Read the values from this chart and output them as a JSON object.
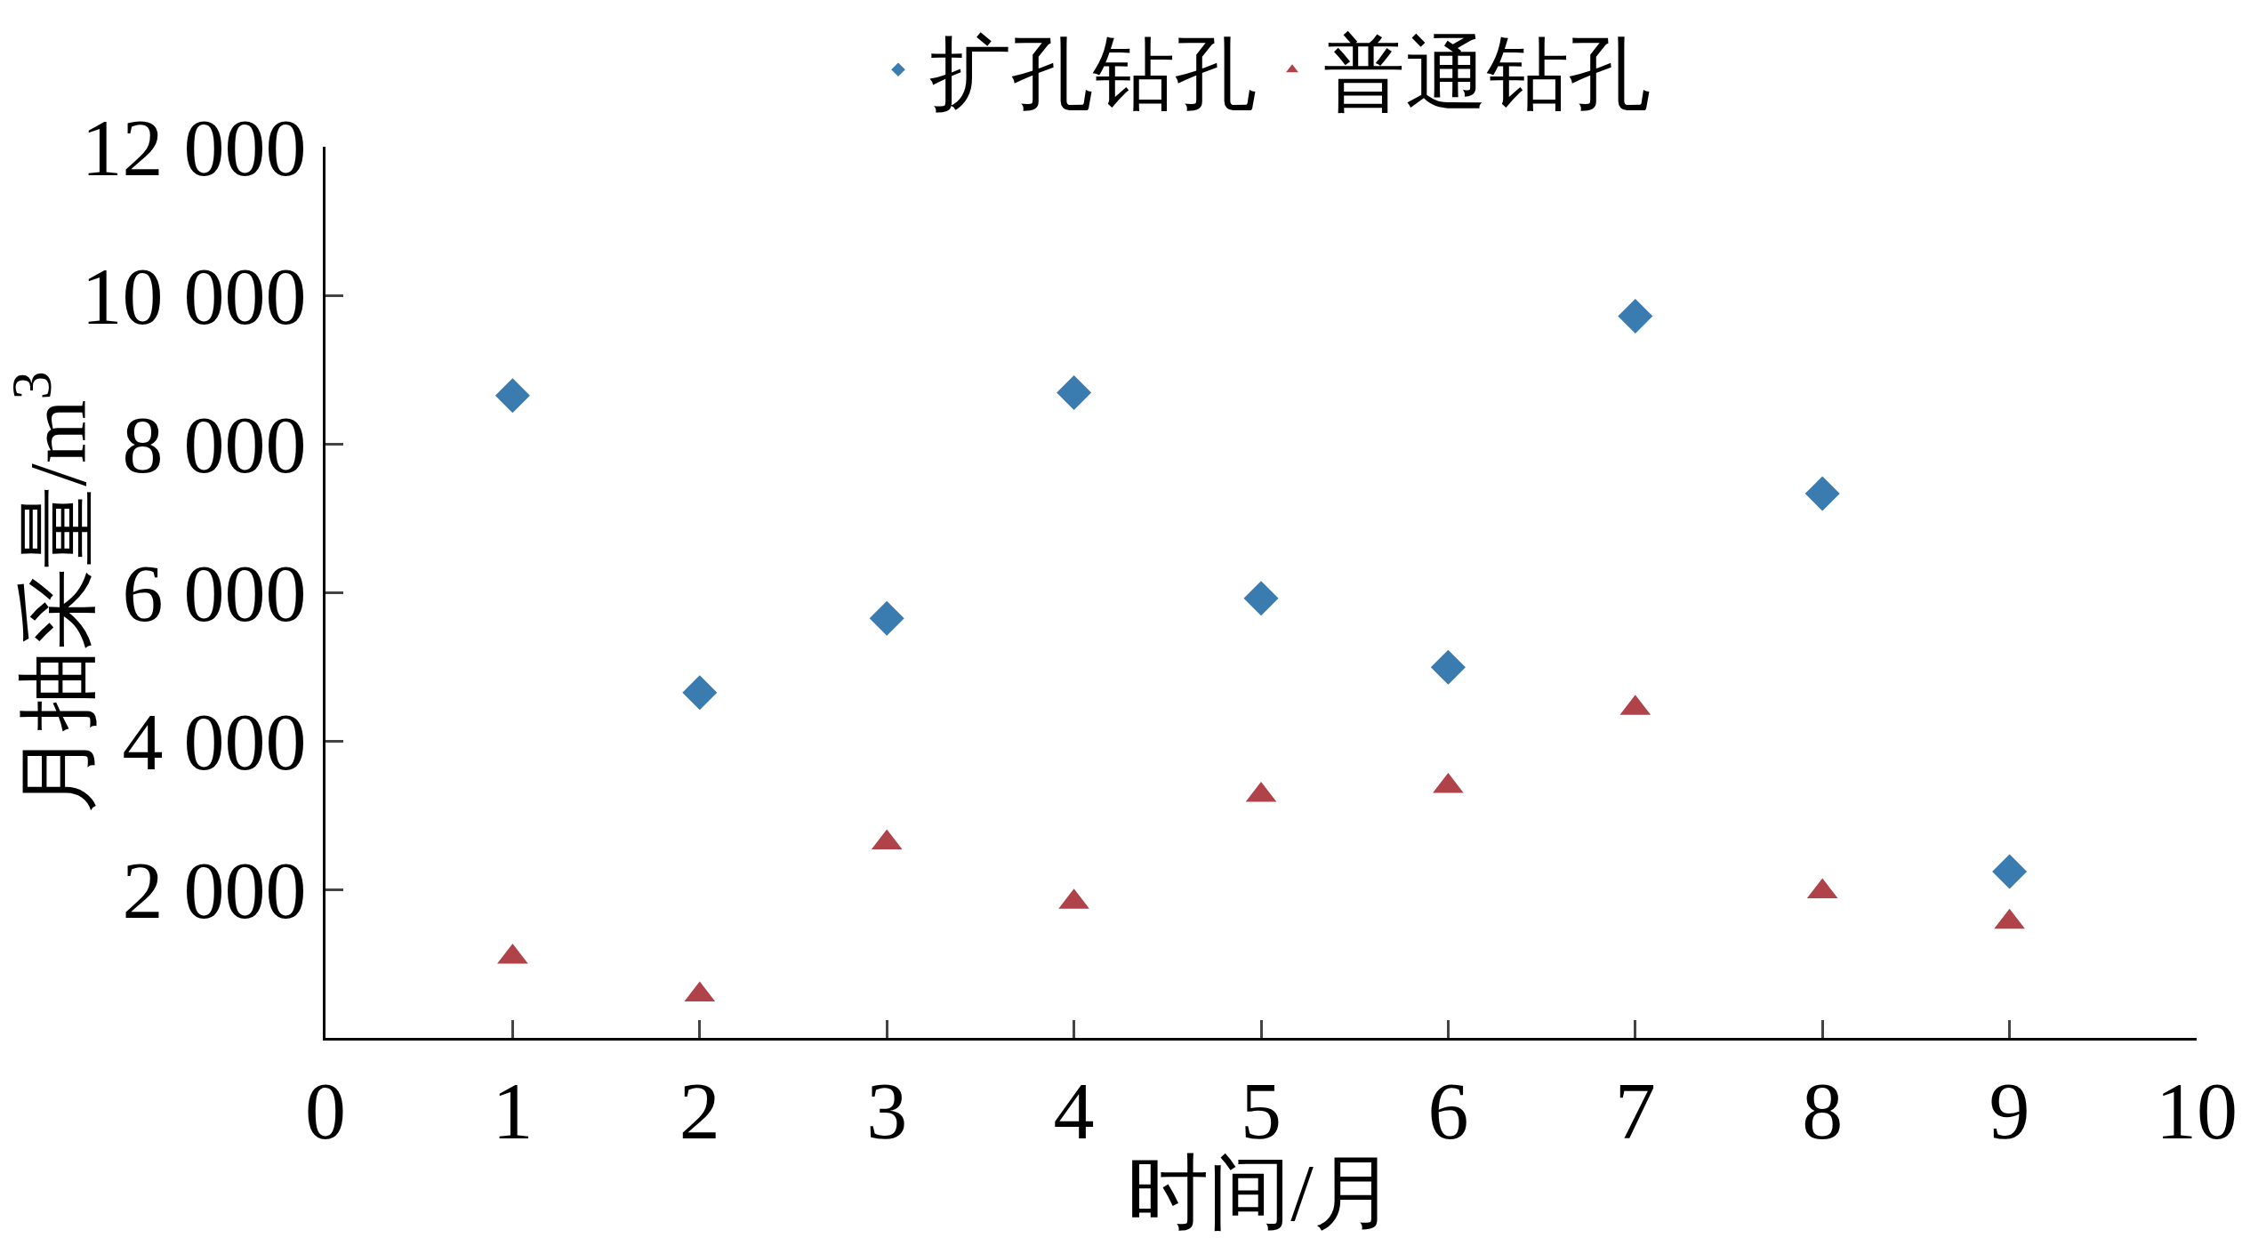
{
  "chart_data": {
    "type": "scatter",
    "xlabel": "时间/月",
    "ylabel": "月抽采量/m$^{3}$",
    "x": [
      1,
      2,
      3,
      4,
      5,
      6,
      7,
      8,
      9
    ],
    "series": [
      {
        "name": "扩孔钻孔",
        "color": "#3a7bb0",
        "marker": "diamond",
        "values": [
          8650,
          4650,
          5650,
          8690,
          5920,
          4990,
          9720,
          7330,
          2240
        ]
      },
      {
        "name": "普通钻孔",
        "color": "#b0424a",
        "marker": "triangle",
        "values": [
          1090,
          580,
          2630,
          1830,
          3270,
          3390,
          4440,
          1970,
          1560
        ]
      }
    ],
    "xlim": [
      0,
      10
    ],
    "xticks": [
      0,
      1,
      2,
      3,
      4,
      5,
      6,
      7,
      8,
      9,
      10
    ],
    "ylim": [
      0,
      12000
    ],
    "yticks": [
      {
        "value": 2000,
        "label": "2 000"
      },
      {
        "value": 4000,
        "label": "4 000"
      },
      {
        "value": 6000,
        "label": "6 000"
      },
      {
        "value": 8000,
        "label": "8 000"
      },
      {
        "value": 10000,
        "label": "10 000"
      },
      {
        "value": 12000,
        "label": "12 000"
      }
    ],
    "legend": "top"
  }
}
